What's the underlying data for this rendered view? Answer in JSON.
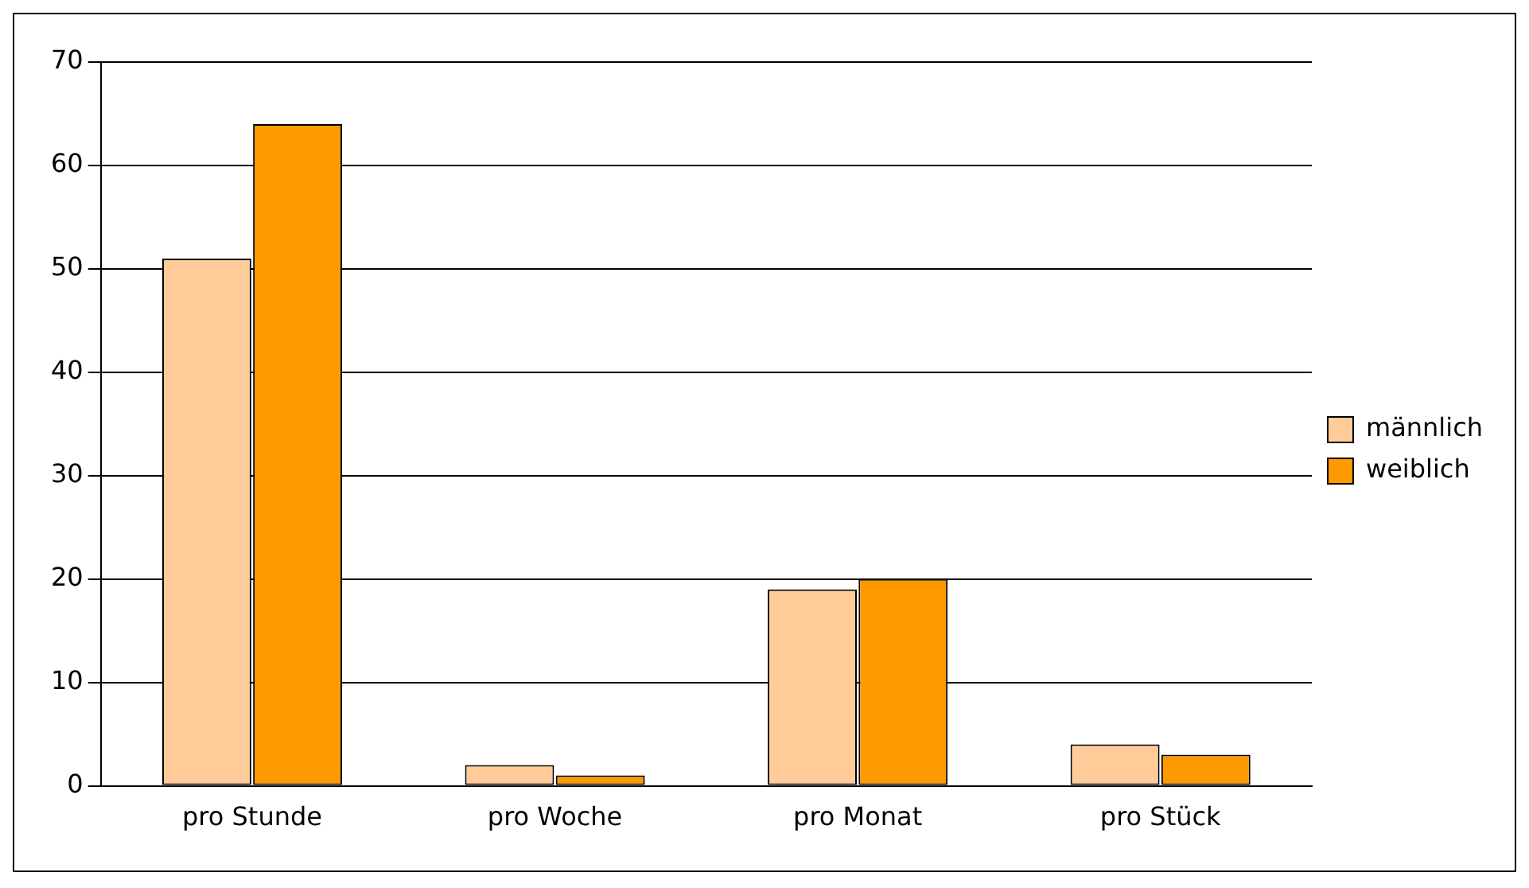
{
  "chart_data": {
    "type": "bar",
    "categories": [
      "pro Stunde",
      "pro Woche",
      "pro Monat",
      "pro Stück"
    ],
    "series": [
      {
        "name": "männlich",
        "color": "#ffcc99",
        "values": [
          51,
          2,
          19,
          4
        ]
      },
      {
        "name": "weiblich",
        "color": "#ff9900",
        "values": [
          64,
          1,
          20,
          3
        ]
      }
    ],
    "ylim": [
      0,
      70
    ],
    "yticks": [
      0,
      10,
      20,
      30,
      40,
      50,
      60,
      70
    ],
    "grid": "y",
    "legend": "right"
  }
}
